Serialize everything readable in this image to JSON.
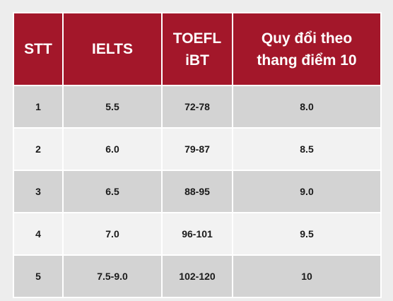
{
  "colors": {
    "header_bg": "#a3172a",
    "header_text": "#ffffff",
    "row_odd_bg": "#d3d3d3",
    "row_even_bg": "#f2f2f2"
  },
  "table": {
    "headers": {
      "stt": "STT",
      "ielts": "IELTS",
      "toefl_line1": "TOEFL",
      "toefl_line2": "iBT",
      "convert_line1": "Quy đổi theo",
      "convert_line2": "thang điểm 10"
    },
    "rows": [
      {
        "stt": "1",
        "ielts": "5.5",
        "toefl": "72-78",
        "score10": "8.0"
      },
      {
        "stt": "2",
        "ielts": "6.0",
        "toefl": "79-87",
        "score10": "8.5"
      },
      {
        "stt": "3",
        "ielts": "6.5",
        "toefl": "88-95",
        "score10": "9.0"
      },
      {
        "stt": "4",
        "ielts": "7.0",
        "toefl": "96-101",
        "score10": "9.5"
      },
      {
        "stt": "5",
        "ielts": "7.5-9.0",
        "toefl": "102-120",
        "score10": "10"
      }
    ]
  }
}
